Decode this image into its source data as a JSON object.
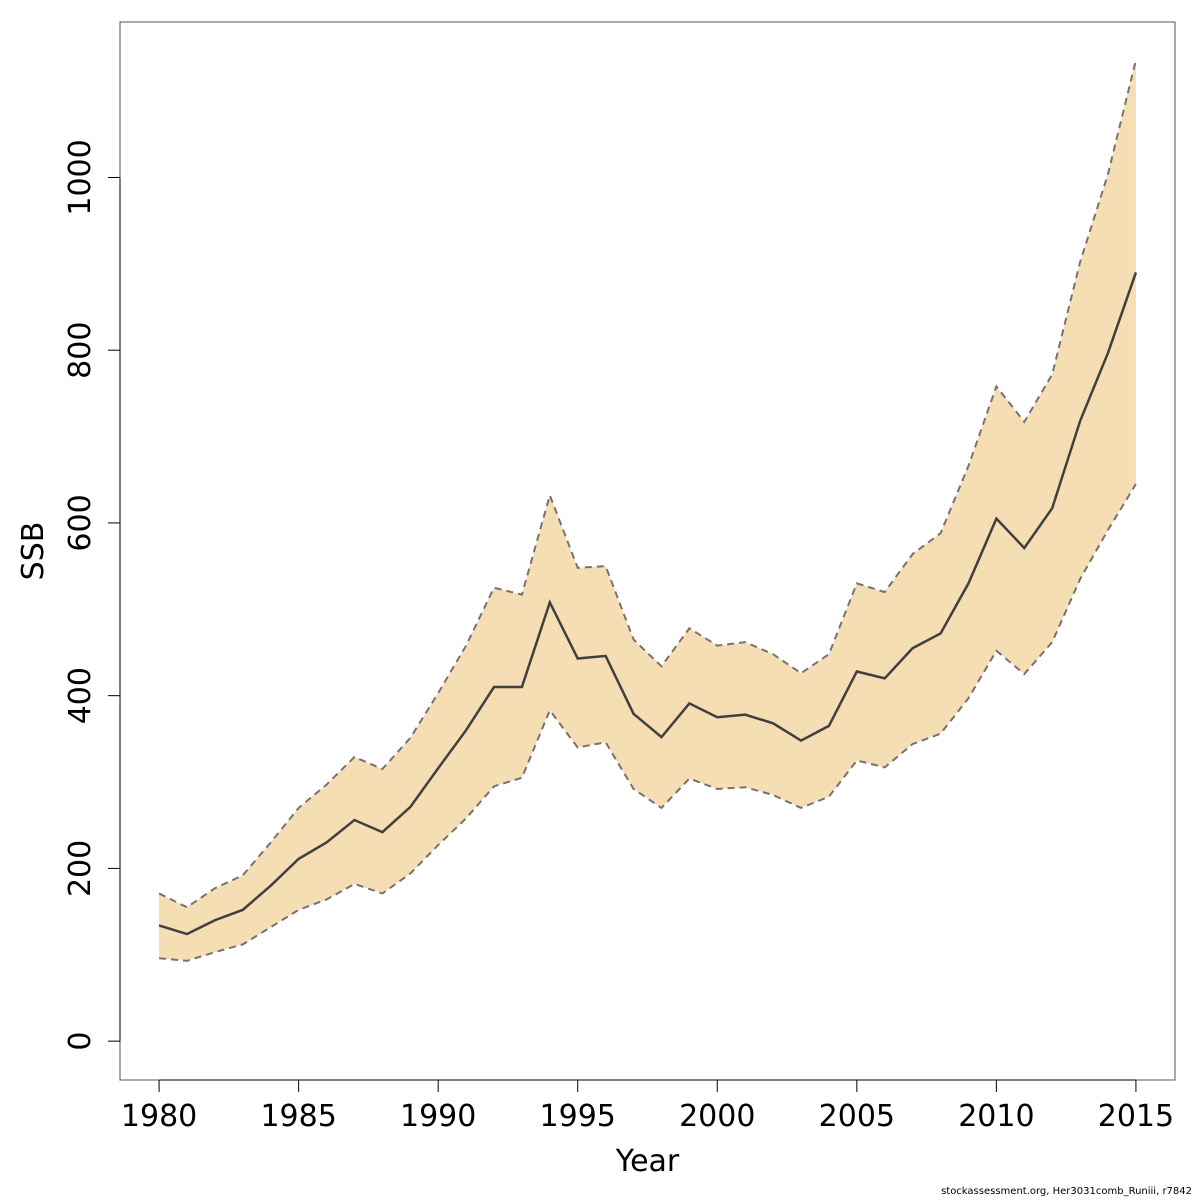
{
  "chart_data": {
    "type": "area",
    "title": "",
    "xlabel": "Year",
    "ylabel": "SSB",
    "xlim": [
      1978.6,
      2016.4
    ],
    "ylim": [
      -45,
      1180
    ],
    "x_ticks": [
      1980,
      1985,
      1990,
      1995,
      2000,
      2005,
      2010,
      2015
    ],
    "y_ticks": [
      0,
      200,
      400,
      600,
      800,
      1000
    ],
    "grid": false,
    "legend": "none",
    "x": [
      1980,
      1981,
      1982,
      1983,
      1984,
      1985,
      1986,
      1987,
      1988,
      1989,
      1990,
      1991,
      1992,
      1993,
      1994,
      1995,
      1996,
      1997,
      1998,
      1999,
      2000,
      2001,
      2002,
      2003,
      2004,
      2005,
      2006,
      2007,
      2008,
      2009,
      2010,
      2011,
      2012,
      2013,
      2014,
      2015
    ],
    "series": [
      {
        "role": "estimate",
        "values": [
          134,
          124,
          140,
          152,
          180,
          211,
          230,
          256,
          242,
          271,
          316,
          360,
          410,
          410,
          508,
          443,
          446,
          379,
          352,
          391,
          375,
          378,
          368,
          348,
          365,
          428,
          420,
          455,
          472,
          530,
          605,
          571,
          617,
          718,
          797,
          890
        ]
      },
      {
        "role": "upper",
        "values": [
          171,
          155,
          177,
          192,
          230,
          270,
          297,
          329,
          315,
          351,
          403,
          458,
          525,
          517,
          632,
          548,
          550,
          465,
          434,
          478,
          458,
          462,
          448,
          426,
          448,
          530,
          520,
          564,
          588,
          666,
          758,
          717,
          772,
          902,
          1004,
          1136
        ]
      },
      {
        "role": "lower",
        "values": [
          96,
          93,
          103,
          112,
          132,
          152,
          164,
          182,
          171,
          194,
          227,
          258,
          295,
          305,
          383,
          340,
          346,
          292,
          270,
          304,
          292,
          294,
          285,
          270,
          283,
          325,
          317,
          344,
          356,
          397,
          452,
          425,
          462,
          535,
          592,
          645
        ]
      }
    ],
    "colors": {
      "band": "#F5DEB3",
      "estimate_line": "#404040",
      "bound_line": "#7a7070"
    }
  },
  "footer": "stockassessment.org, Her3031comb_Runiii, r7842"
}
